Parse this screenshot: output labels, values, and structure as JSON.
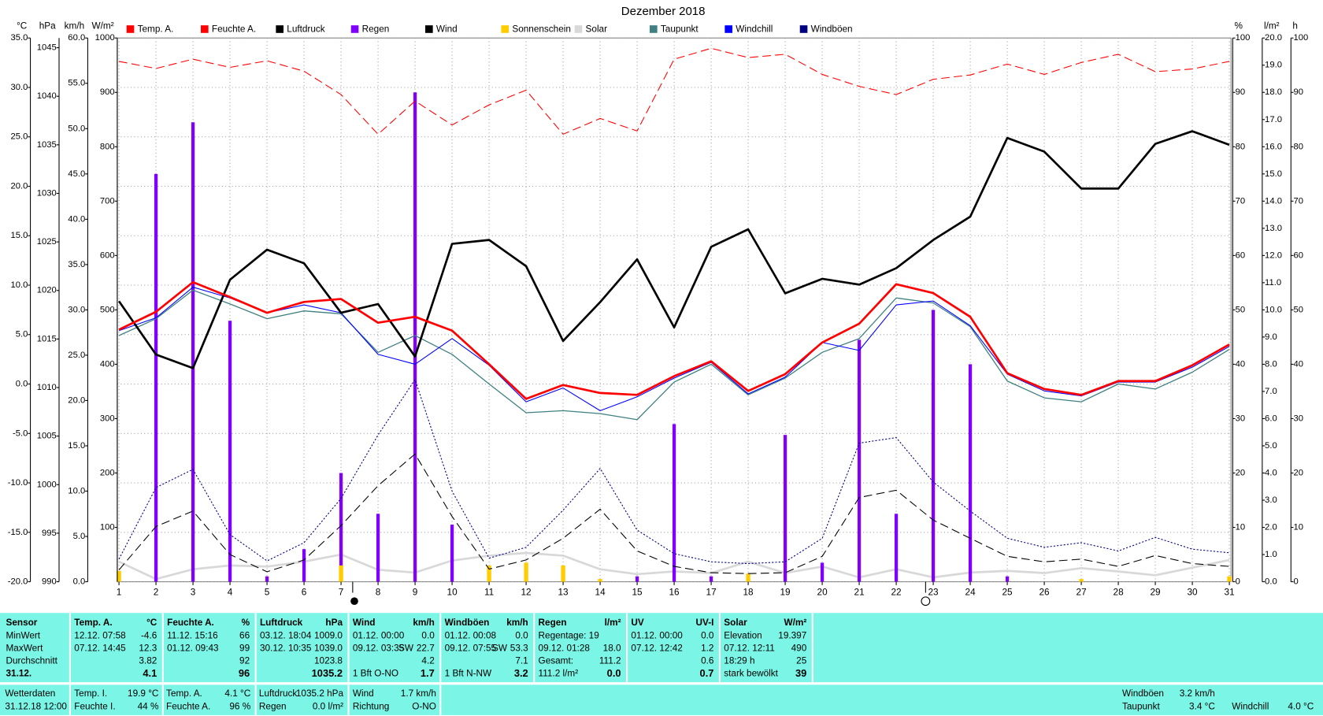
{
  "chart_data": {
    "type": "line",
    "title": "Dezember 2018",
    "x": [
      1,
      2,
      3,
      4,
      5,
      6,
      7,
      8,
      9,
      10,
      11,
      12,
      13,
      14,
      15,
      16,
      17,
      18,
      19,
      20,
      21,
      22,
      23,
      24,
      25,
      26,
      27,
      28,
      29,
      30,
      31
    ],
    "xlim": [
      1,
      31
    ],
    "xticks": [
      1,
      2,
      3,
      4,
      5,
      6,
      7,
      8,
      9,
      10,
      11,
      12,
      13,
      14,
      15,
      16,
      17,
      18,
      19,
      20,
      21,
      22,
      23,
      24,
      25,
      26,
      27,
      28,
      29,
      30,
      31
    ],
    "grid": true,
    "axes": [
      {
        "unit": "°C",
        "side": "left",
        "color": "#ff0000",
        "ylim": [
          -20,
          35
        ],
        "yticks": [
          {
            "value": -20,
            "label": "-20.0"
          },
          {
            "value": -15,
            "label": "-15.0"
          },
          {
            "value": -10,
            "label": "-10.0"
          },
          {
            "value": -5,
            "label": "-5.0"
          },
          {
            "value": 0,
            "label": "0.0"
          },
          {
            "value": 5,
            "label": "5.0"
          },
          {
            "value": 10,
            "label": "10.0"
          },
          {
            "value": 15,
            "label": "15.0"
          },
          {
            "value": 20,
            "label": "20.0"
          },
          {
            "value": 25,
            "label": "25.0"
          },
          {
            "value": 30,
            "label": "30.0"
          },
          {
            "value": 35,
            "label": "35.0"
          }
        ]
      },
      {
        "unit": "hPa",
        "side": "left",
        "color": "#000000",
        "ylim": [
          990,
          1046
        ],
        "yticks": [
          990,
          995,
          1000,
          1005,
          1010,
          1015,
          1020,
          1025,
          1030,
          1035,
          1040,
          1045
        ]
      },
      {
        "unit": "km/h",
        "side": "left",
        "color": "#000000",
        "ylim": [
          0,
          60
        ],
        "yticks": [
          {
            "value": 0,
            "label": "0.0"
          },
          {
            "value": 5,
            "label": "5.0"
          },
          {
            "value": 10,
            "label": "10.0"
          },
          {
            "value": 15,
            "label": "15.0"
          },
          {
            "value": 20,
            "label": "20.0"
          },
          {
            "value": 25,
            "label": "25.0"
          },
          {
            "value": 30,
            "label": "30.0"
          },
          {
            "value": 35,
            "label": "35.0"
          },
          {
            "value": 40,
            "label": "40.0"
          },
          {
            "value": 45,
            "label": "45.0"
          },
          {
            "value": 50,
            "label": "50.0"
          },
          {
            "value": 55,
            "label": "55.0"
          },
          {
            "value": 60,
            "label": "60.0"
          }
        ]
      },
      {
        "unit": "W/m²",
        "side": "left",
        "color": "#d8d8d8",
        "ylim": [
          0,
          1000
        ],
        "yticks": [
          100,
          200,
          300,
          400,
          500,
          600,
          700,
          800,
          900,
          1000
        ]
      },
      {
        "unit": "%",
        "side": "right",
        "color": "#ff0000",
        "ylim": [
          0,
          100
        ],
        "yticks": [
          0,
          10,
          20,
          30,
          40,
          50,
          60,
          70,
          80,
          90,
          100
        ]
      },
      {
        "unit": "l/m²",
        "side": "right",
        "color": "#8000ff",
        "ylim": [
          0,
          20
        ],
        "yticks": [
          {
            "value": 0,
            "label": "0.0"
          },
          {
            "value": 1,
            "label": "1.0"
          },
          {
            "value": 2,
            "label": "2.0"
          },
          {
            "value": 3,
            "label": "3.0"
          },
          {
            "value": 4,
            "label": "4.0"
          },
          {
            "value": 5,
            "label": "5.0"
          },
          {
            "value": 6,
            "label": "6.0"
          },
          {
            "value": 7,
            "label": "7.0"
          },
          {
            "value": 8,
            "label": "8.0"
          },
          {
            "value": 9,
            "label": "9.0"
          },
          {
            "value": 10,
            "label": "10.0"
          },
          {
            "value": 11,
            "label": "11.0"
          },
          {
            "value": 12,
            "label": "12.0"
          },
          {
            "value": 13,
            "label": "13.0"
          },
          {
            "value": 14,
            "label": "14.0"
          },
          {
            "value": 15,
            "label": "15.0"
          },
          {
            "value": 16,
            "label": "16.0"
          },
          {
            "value": 17,
            "label": "17.0"
          },
          {
            "value": 18,
            "label": "18.0"
          },
          {
            "value": 19,
            "label": "19.0"
          },
          {
            "value": 20,
            "label": "20.0"
          }
        ]
      },
      {
        "unit": "h",
        "side": "right",
        "color": "#e8c000",
        "ylim": [
          0,
          100
        ],
        "yticks": [
          0,
          10,
          20,
          30,
          40,
          50,
          60,
          70,
          80,
          90,
          100
        ]
      }
    ],
    "series": [
      {
        "name": "Temp. A.",
        "color": "#ff0000",
        "style": "line",
        "width": 2.5,
        "axis": 0,
        "values": [
          5.5,
          7.3,
          10.3,
          8.8,
          7.2,
          8.3,
          8.6,
          6.2,
          6.8,
          5.4,
          2.0,
          -1.5,
          -0.1,
          -0.9,
          -1.1,
          0.8,
          2.3,
          -0.7,
          1.0,
          4.2,
          6.1,
          10.1,
          9.2,
          6.8,
          1.1,
          -0.5,
          -1.1,
          0.3,
          0.3,
          1.9,
          4.0
        ]
      },
      {
        "name": "Feuchte A.",
        "color": "#ff0000",
        "style": "dashed",
        "width": 1,
        "axis": 4,
        "values": [
          95.7,
          94.4,
          96.1,
          94.6,
          95.8,
          93.9,
          89.6,
          82.3,
          88.4,
          84.0,
          87.7,
          90.4,
          82.3,
          85.2,
          82.9,
          96.1,
          98.1,
          96.4,
          97.0,
          93.3,
          91.1,
          89.6,
          92.4,
          93.2,
          95.2,
          93.3,
          95.5,
          97.0,
          93.8,
          94.3,
          95.7
        ]
      },
      {
        "name": "Luftdruck",
        "color": "#000000",
        "style": "line",
        "width": 2.5,
        "axis": 1,
        "values": [
          1018.9,
          1013.4,
          1012.0,
          1021.1,
          1024.2,
          1022.8,
          1017.7,
          1018.6,
          1013.2,
          1024.8,
          1025.2,
          1022.5,
          1014.8,
          1018.8,
          1023.2,
          1016.2,
          1024.5,
          1026.3,
          1019.7,
          1021.2,
          1020.6,
          1022.3,
          1025.2,
          1027.6,
          1035.7,
          1034.3,
          1030.5,
          1030.5,
          1035.1,
          1036.4,
          1035.0
        ]
      },
      {
        "name": "Regen",
        "color": "#8000ff",
        "style": "bar",
        "width": 4,
        "axis": 5,
        "values": [
          0,
          15.0,
          16.9,
          9.6,
          0.2,
          1.2,
          4.0,
          2.5,
          18.0,
          2.1,
          0,
          0,
          0,
          0,
          0.2,
          5.8,
          0.2,
          0,
          5.4,
          0.7,
          8.9,
          2.5,
          10.0,
          8.0,
          0.2,
          0,
          0,
          0,
          0,
          0,
          0
        ]
      },
      {
        "name": "Wind",
        "color": "#000000",
        "style": "dashed",
        "width": 1,
        "axis": 2,
        "values": [
          1.3,
          6.1,
          7.8,
          3.0,
          1.1,
          2.4,
          6.2,
          10.6,
          14.1,
          7.2,
          1.4,
          2.4,
          4.8,
          8.0,
          3.4,
          1.7,
          1.0,
          0.9,
          1.0,
          2.8,
          9.3,
          10.1,
          6.8,
          4.8,
          2.8,
          2.2,
          2.5,
          1.7,
          2.9,
          2.0,
          1.7
        ]
      },
      {
        "name": "Sonnenschein",
        "color": "#ffcc00",
        "style": "bar",
        "width": 5,
        "axis": 6,
        "values": [
          2,
          0,
          0,
          0,
          0,
          0,
          3,
          0,
          0,
          0,
          3,
          3.5,
          3,
          0.5,
          0,
          0,
          0,
          1.5,
          0,
          0,
          0,
          0,
          0,
          0,
          0,
          0,
          0.5,
          0,
          0,
          0,
          1
        ]
      },
      {
        "name": "Solar",
        "color": "#d8d8d8",
        "style": "line",
        "width": 2.5,
        "axis": 3,
        "values": [
          37,
          5,
          23,
          30,
          28,
          37,
          50,
          22,
          17,
          39,
          48,
          53,
          48,
          23,
          14,
          19,
          16,
          37,
          16,
          28,
          8,
          23,
          8,
          17,
          20,
          16,
          25,
          19,
          12,
          26,
          40
        ]
      },
      {
        "name": "Taupunkt",
        "color": "#408080",
        "style": "line",
        "width": 1.2,
        "axis": 0,
        "values": [
          4.9,
          6.6,
          9.5,
          8.1,
          6.6,
          7.4,
          7.1,
          3.2,
          4.9,
          3.0,
          0.0,
          -2.9,
          -2.7,
          -3.0,
          -3.6,
          0.2,
          2.0,
          -1.1,
          0.6,
          3.2,
          4.6,
          8.7,
          8.2,
          5.8,
          0.3,
          -1.4,
          -1.8,
          0.0,
          -0.5,
          1.2,
          3.5
        ]
      },
      {
        "name": "Windchill",
        "color": "#0000ff",
        "style": "line",
        "width": 1,
        "axis": 0,
        "values": [
          5.4,
          6.7,
          9.8,
          8.7,
          7.2,
          8.0,
          7.2,
          3.0,
          2.0,
          4.6,
          1.9,
          -1.8,
          -0.4,
          -2.7,
          -1.3,
          0.6,
          2.2,
          -1.0,
          0.7,
          4.2,
          3.4,
          8.0,
          8.4,
          5.9,
          1.0,
          -0.7,
          -1.2,
          0.2,
          0.2,
          1.7,
          3.8
        ]
      },
      {
        "name": "Windböen",
        "color": "#000080",
        "style": "dotted",
        "width": 1,
        "axis": 2,
        "values": [
          2.5,
          10.4,
          12.4,
          5.2,
          2.3,
          4.3,
          9.2,
          16.2,
          22.3,
          10.0,
          2.6,
          3.8,
          7.9,
          12.5,
          5.7,
          3.1,
          2.2,
          2.0,
          2.2,
          4.8,
          15.3,
          15.9,
          11.0,
          7.8,
          4.8,
          3.8,
          4.3,
          3.4,
          4.9,
          3.6,
          3.2
        ]
      }
    ]
  },
  "stats": {
    "columns": [
      {
        "name": "Sensor",
        "rows": [
          {
            "left": "MinWert"
          },
          {
            "left": "MaxWert"
          },
          {
            "left": "Durchschnitt"
          },
          {
            "left": "31.12."
          }
        ]
      },
      {
        "name": "Temp. A.",
        "unit": "°C",
        "rows": [
          {
            "left": "12.12.  07:58",
            "right": "-4.6"
          },
          {
            "left": "07.12.  14:45",
            "right": "12.3"
          },
          {
            "right": "3.82"
          },
          {
            "right": "4.1"
          }
        ]
      },
      {
        "name": "Feuchte A.",
        "unit": "%",
        "rows": [
          {
            "left": "11.12.  15:16",
            "right": "66"
          },
          {
            "left": "01.12.  09:43",
            "right": "99"
          },
          {
            "right": "92"
          },
          {
            "right": "96"
          }
        ]
      },
      {
        "name": "Luftdruck",
        "unit": "hPa",
        "rows": [
          {
            "left": "03.12.  18:04",
            "right": "1009.0"
          },
          {
            "left": "30.12.  10:35",
            "right": "1039.0"
          },
          {
            "right": "1023.8"
          },
          {
            "right": "1035.2"
          }
        ]
      },
      {
        "name": "Wind",
        "unit": "km/h",
        "rows": [
          {
            "left": "01.12.  00:00",
            "right": "0.0"
          },
          {
            "left": "09.12.  03:35",
            "mid": "SW",
            "right": "22.7"
          },
          {
            "right": "4.2"
          },
          {
            "left": "1 Bft O-NO",
            "right": "1.7"
          }
        ]
      },
      {
        "name": "Windböen",
        "unit": "km/h",
        "rows": [
          {
            "left": "01.12.  00:08",
            "right": "0.0"
          },
          {
            "left": "09.12.  07:55",
            "mid": "SW",
            "right": "53.3"
          },
          {
            "right": "7.1"
          },
          {
            "left": "1 Bft N-NW",
            "right": "3.2"
          }
        ]
      },
      {
        "name": "Regen",
        "unit": "l/m²",
        "rows": [
          {
            "left": "Regentage: 19"
          },
          {
            "left": "09.12.  01:28",
            "right": "18.0"
          },
          {
            "left": "Gesamt:",
            "right": "111.2"
          },
          {
            "left": "111.2 l/m²",
            "right": "0.0"
          }
        ]
      },
      {
        "name": "UV",
        "unit": "UV-I",
        "rows": [
          {
            "left": "01.12.  00:00",
            "right": "0.0"
          },
          {
            "left": "07.12.  12:42",
            "right": "1.2"
          },
          {
            "right": "0.6"
          },
          {
            "right": "0.7"
          }
        ]
      },
      {
        "name": "Solar",
        "unit": "W/m²",
        "rows": [
          {
            "left": "Elevation",
            "right": "19.397"
          },
          {
            "left": "07.12.  12:11",
            "right": "490"
          },
          {
            "left": "18:29 h",
            "right": "25"
          },
          {
            "left": "stark bewölkt",
            "right": "39"
          }
        ]
      }
    ]
  },
  "current": {
    "title": "Wetterdaten",
    "time": "31.12.18 12:00",
    "items": [
      {
        "label": "Temp. I.",
        "value": "19.9 °C"
      },
      {
        "label": "Feuchte I.",
        "value": "44 %"
      },
      {
        "label": "Temp. A.",
        "value": "4.1 °C"
      },
      {
        "label": "Feuchte A.",
        "value": "96 %"
      },
      {
        "label": "Luftdruck",
        "value": "1035.2 hPa"
      },
      {
        "label": "Regen",
        "value": "0.0 l/m²"
      },
      {
        "label": "Wind",
        "value": "1.7 km/h"
      },
      {
        "label": "Richtung",
        "value": "O-NO"
      },
      {
        "label": "Windböen",
        "value": "3.2 km/h"
      },
      {
        "label": "Taupunkt",
        "value": "3.4 °C"
      },
      {
        "label": "Windchill",
        "value": "4.0 °C"
      }
    ]
  }
}
